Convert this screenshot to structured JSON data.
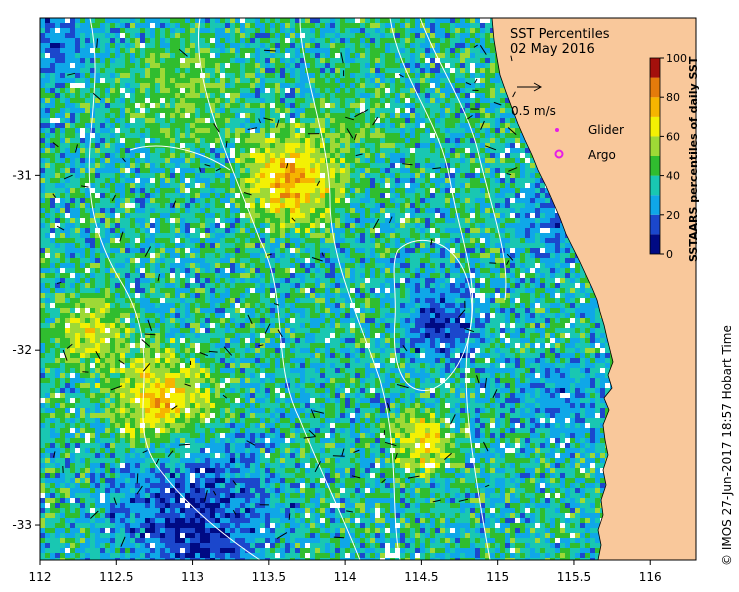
{
  "map": {
    "title_line1": "SST Percentiles",
    "title_line2": "02 May 2016",
    "lon_ticks": [
      "112",
      "112.5",
      "113",
      "113.5",
      "114",
      "114.5",
      "115",
      "115.5",
      "116"
    ],
    "lat_ticks": [
      "-31",
      "-32",
      "-33"
    ],
    "lon_range": [
      112,
      116.3
    ],
    "lat_range": [
      -33.2,
      -30.1
    ],
    "colors": {
      "land": "#f9c89b",
      "white_contours": "#ffffff",
      "arrows": "#000000"
    }
  },
  "legend": {
    "scale_label": "0.5 m/s",
    "glider_label": "Glider",
    "argo_label": "Argo",
    "glider_color": "#e61ee6",
    "argo_color": "#e61ee6"
  },
  "colorbar": {
    "title": "SSTAARS percentiles of daily SST",
    "tick_labels": [
      "0",
      "20",
      "40",
      "60",
      "80",
      "100"
    ],
    "bins": [
      {
        "from": 0,
        "to": 10,
        "color": "#000a84"
      },
      {
        "from": 10,
        "to": 20,
        "color": "#1b47cc"
      },
      {
        "from": 20,
        "to": 30,
        "color": "#0fa7e8"
      },
      {
        "from": 30,
        "to": 40,
        "color": "#19c7b2"
      },
      {
        "from": 40,
        "to": 50,
        "color": "#30bd2f"
      },
      {
        "from": 50,
        "to": 60,
        "color": "#9ed936"
      },
      {
        "from": 60,
        "to": 70,
        "color": "#f3f004"
      },
      {
        "from": 70,
        "to": 80,
        "color": "#f6b400"
      },
      {
        "from": 80,
        "to": 90,
        "color": "#e47b0b"
      },
      {
        "from": 90,
        "to": 100,
        "color": "#a3100c"
      }
    ]
  },
  "credit": "© IMOS 27-Jun-2017 18:57 Hobart Time"
}
